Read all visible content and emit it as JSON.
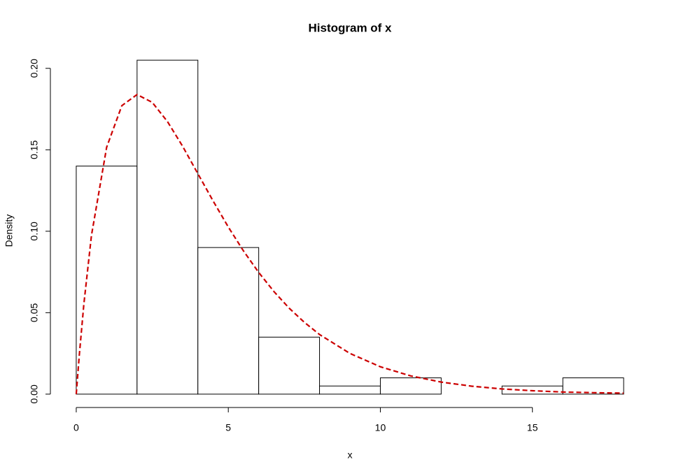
{
  "chart_data": {
    "type": "histogram",
    "title": "Histogram of x",
    "x_label": "x",
    "y_label": "Density",
    "bins": [
      0,
      2,
      4,
      6,
      8,
      10,
      12,
      14,
      16,
      18
    ],
    "values": [
      0.14,
      0.205,
      0.09,
      0.035,
      0.005,
      0.01,
      0,
      0.005,
      0.01
    ],
    "color": "#ffffff",
    "edge_color": "#000000",
    "curve": {
      "color": "#cc0000",
      "x": [
        0,
        0.1,
        0.25,
        0.5,
        1,
        1.5,
        2,
        2.5,
        3,
        3.5,
        4,
        4.5,
        5,
        5.5,
        6,
        6.5,
        7,
        7.5,
        8,
        9,
        10,
        11,
        12,
        13,
        14,
        15,
        16,
        17,
        18
      ],
      "values": [
        0,
        0.0238,
        0.0552,
        0.0974,
        0.1516,
        0.1771,
        0.1839,
        0.1791,
        0.1673,
        0.1521,
        0.1353,
        0.1186,
        0.1026,
        0.0879,
        0.0747,
        0.063,
        0.0528,
        0.0441,
        0.0366,
        0.025,
        0.0168,
        0.0112,
        0.0074,
        0.0049,
        0.0032,
        0.0021,
        0.0013,
        0.0009,
        0.0006
      ]
    },
    "xlim": [
      -0.85,
      18.85
    ],
    "ylim": [
      -0.0082,
      0.2132
    ],
    "xticks": [
      0,
      5,
      10,
      15
    ],
    "yticks": [
      {
        "value": 0,
        "label": "0.00"
      },
      {
        "value": 0.05,
        "label": "0.05"
      },
      {
        "value": 0.1,
        "label": "0.10"
      },
      {
        "value": 0.15,
        "label": "0.15"
      },
      {
        "value": 0.2,
        "label": "0.20"
      }
    ]
  }
}
